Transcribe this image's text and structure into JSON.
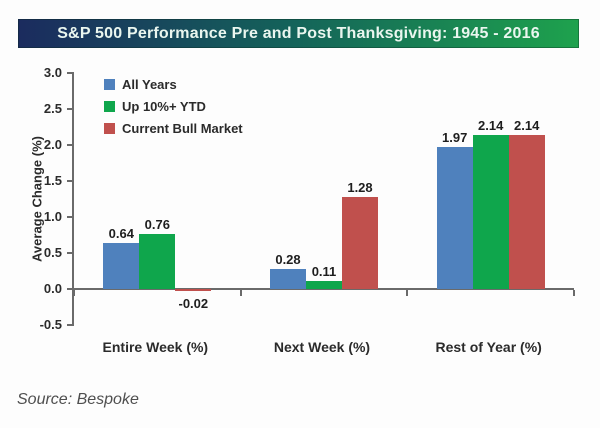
{
  "source": "Source: Bespoke",
  "colors": {
    "title_gradient_left": "#1b2b5e",
    "title_gradient_mid": "#14625a",
    "title_gradient_right": "#1ea24d",
    "title_text": "#eaf6ef",
    "axis": "#6a6a6a",
    "label_text": "#2b2b2b",
    "background": "#fdfdfd"
  },
  "chart_data": {
    "type": "bar",
    "title": "S&P 500 Performance Pre and Post Thanksgiving: 1945 - 2016",
    "categories": [
      "Entire Week (%)",
      "Next Week (%)",
      "Rest of Year (%)"
    ],
    "series": [
      {
        "name": "All Years",
        "color": "#4f81bd",
        "values": [
          0.64,
          0.28,
          1.97
        ]
      },
      {
        "name": "Up 10%+ YTD",
        "color": "#0fa64c",
        "values": [
          0.76,
          0.11,
          2.14
        ]
      },
      {
        "name": "Current Bull Market",
        "color": "#c0504d",
        "values": [
          -0.02,
          1.28,
          2.14
        ]
      }
    ],
    "xlabel": "",
    "ylabel": "Average Change (%)",
    "ylim": [
      -0.5,
      3.0
    ],
    "yticks": [
      3.0,
      2.5,
      2.0,
      1.5,
      1.0,
      0.5,
      0.0,
      -0.5
    ],
    "legend_position": "top-left",
    "grid": false,
    "value_labels": true,
    "value_label_decimals": 2
  }
}
